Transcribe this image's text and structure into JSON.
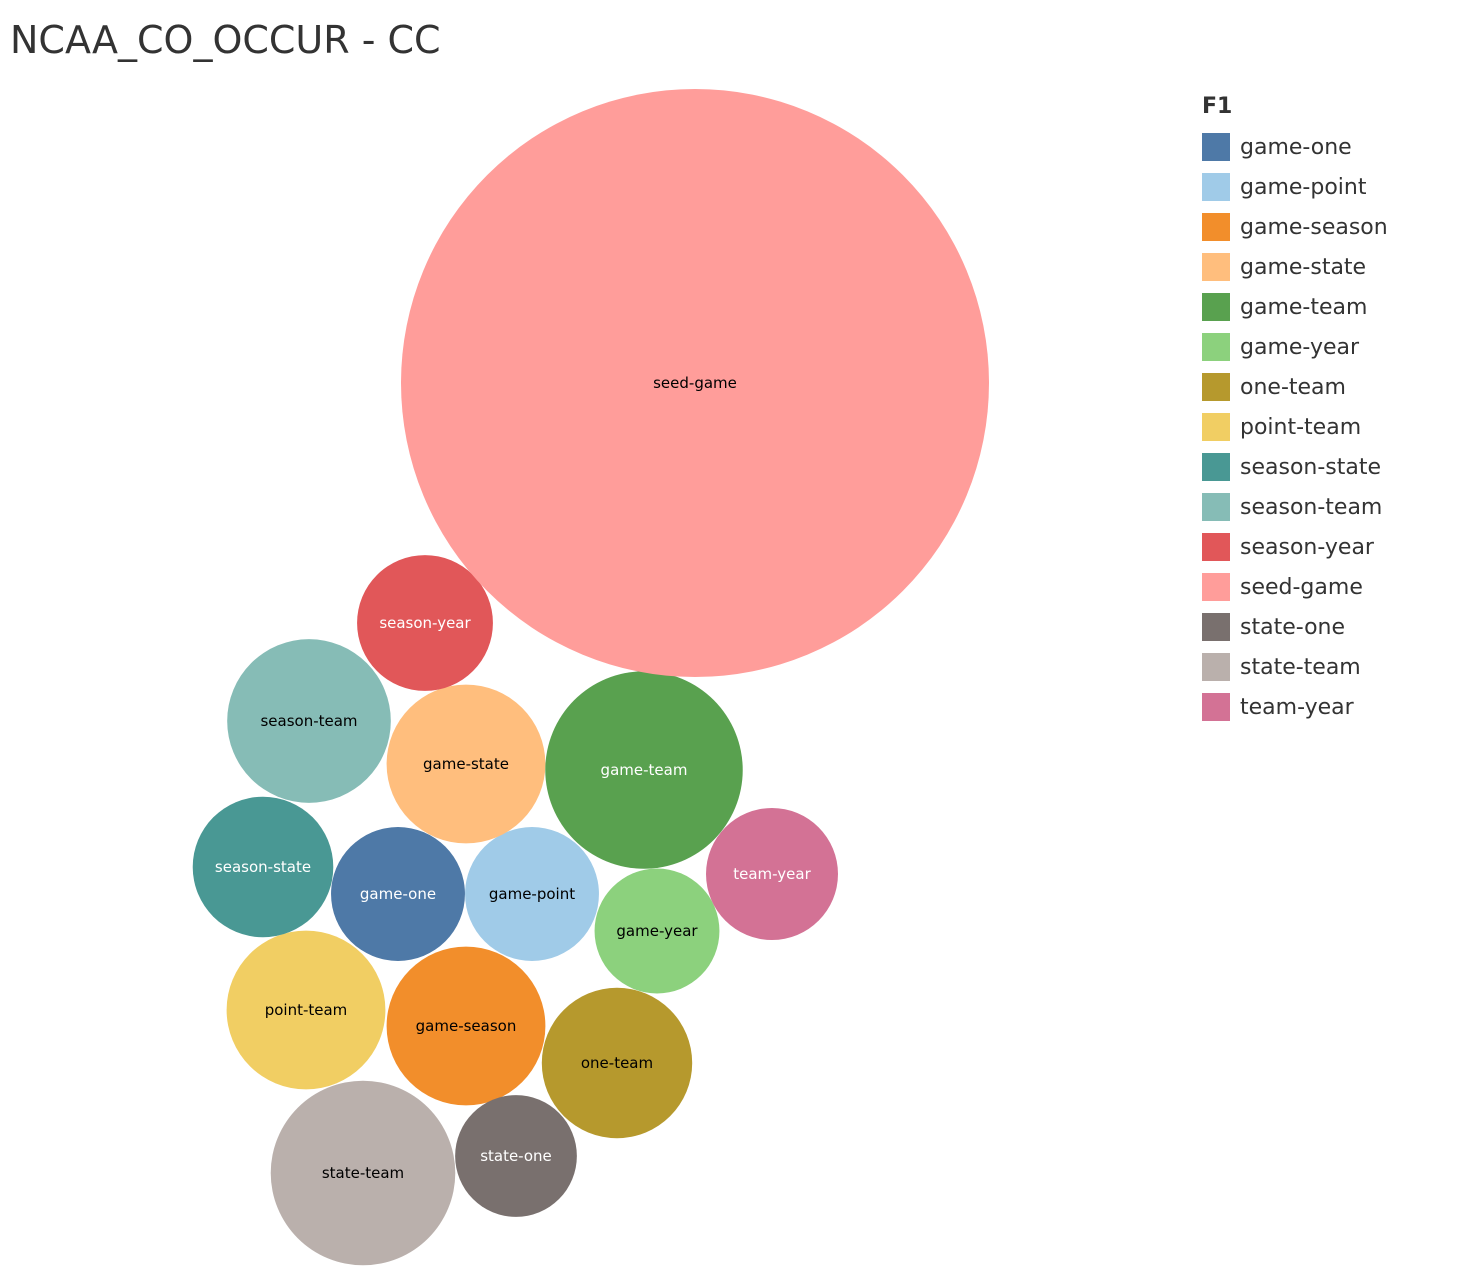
{
  "title": "NCAA_CO_OCCUR - CC",
  "chart_data": {
    "type": "bubble",
    "title": "NCAA_CO_OCCUR - CC",
    "legend_title": "F1",
    "legend_position": "right",
    "series": [
      {
        "name": "game-one",
        "value": 69,
        "color": "#4e79a7",
        "label_color": "#ffffff"
      },
      {
        "name": "game-point",
        "value": 69,
        "color": "#a0cbe8",
        "label_color": "#000000"
      },
      {
        "name": "game-season",
        "value": 97,
        "color": "#f28e2b",
        "label_color": "#000000"
      },
      {
        "name": "game-state",
        "value": 97,
        "color": "#ffbe7d",
        "label_color": "#000000"
      },
      {
        "name": "game-team",
        "value": 150,
        "color": "#59a14f",
        "label_color": "#ffffff"
      },
      {
        "name": "game-year",
        "value": 60,
        "color": "#8cd17d",
        "label_color": "#000000"
      },
      {
        "name": "one-team",
        "value": 87,
        "color": "#b6992d",
        "label_color": "#000000"
      },
      {
        "name": "point-team",
        "value": 97,
        "color": "#f1ce63",
        "label_color": "#000000"
      },
      {
        "name": "season-state",
        "value": 76,
        "color": "#499894",
        "label_color": "#ffffff"
      },
      {
        "name": "season-team",
        "value": 103,
        "color": "#86bcb6",
        "label_color": "#000000"
      },
      {
        "name": "season-year",
        "value": 71,
        "color": "#e15759",
        "label_color": "#ffffff"
      },
      {
        "name": "seed-game",
        "value": 1330,
        "color": "#ff9d9a",
        "label_color": "#000000"
      },
      {
        "name": "state-one",
        "value": 57,
        "color": "#79706e",
        "label_color": "#ffffff"
      },
      {
        "name": "state-team",
        "value": 131,
        "color": "#bab0ac",
        "label_color": "#000000"
      },
      {
        "name": "team-year",
        "value": 67,
        "color": "#d37295",
        "label_color": "#ffffff"
      }
    ]
  }
}
